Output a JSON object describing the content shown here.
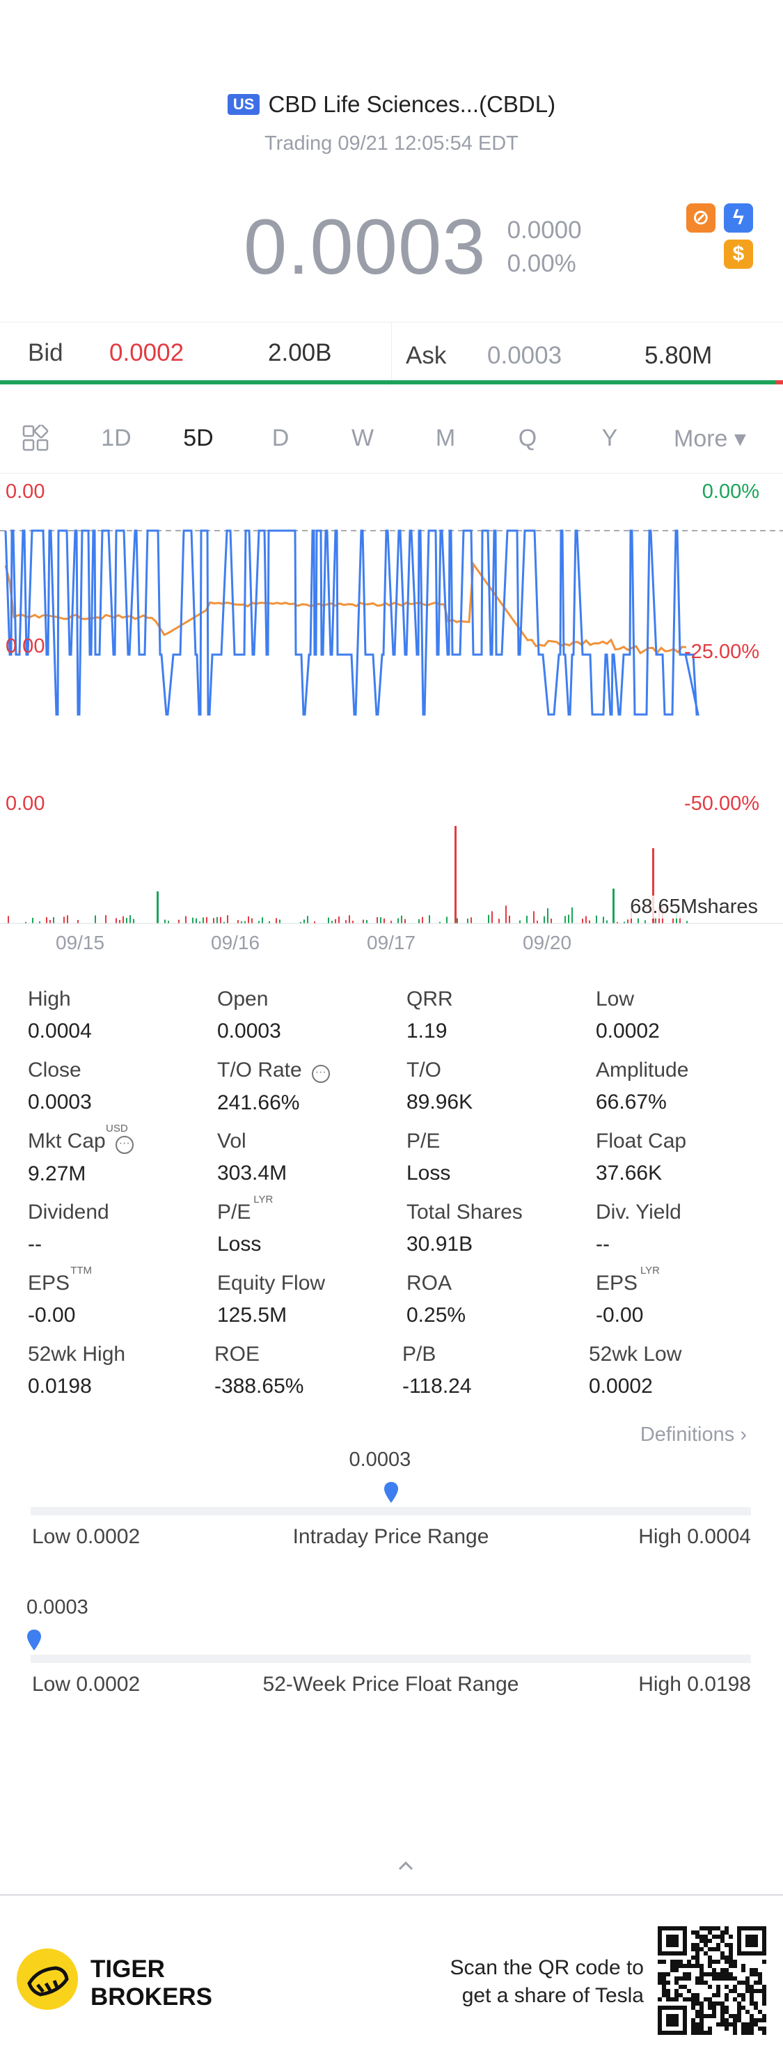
{
  "header": {
    "market_badge": "US",
    "title": "CBD Life Sciences...(CBDL)",
    "status": "Trading 09/21 12:05:54 EDT"
  },
  "price": {
    "last": "0.0003",
    "change": "0.0000",
    "change_pct": "0.00%"
  },
  "quote": {
    "bid_label": "Bid",
    "bid": "0.0002",
    "bid_size": "2.00B",
    "ask_label": "Ask",
    "ask": "0.0003",
    "ask_size": "5.80M"
  },
  "tabs": [
    "1D",
    "5D",
    "D",
    "W",
    "M",
    "Q",
    "Y"
  ],
  "tab_more": "More ▾",
  "active_tab": "5D",
  "chart": {
    "left_top": "0.00",
    "left_mid": "0.00",
    "left_bottom": "0.00",
    "right_top": "0.00%",
    "right_mid": "-25.00%",
    "right_bottom": "-50.00%",
    "volume_label": "68.65Mshares",
    "dates": [
      "09/15",
      "09/16",
      "09/17",
      "09/20"
    ]
  },
  "stats": [
    {
      "label": "High",
      "value": "0.0004"
    },
    {
      "label": "Open",
      "value": "0.0003"
    },
    {
      "label": "QRR",
      "value": "1.19"
    },
    {
      "label": "Low",
      "value": "0.0002"
    },
    {
      "label": "Close",
      "value": "0.0003"
    },
    {
      "label": "T/O Rate",
      "value": "241.66%",
      "dots": true
    },
    {
      "label": "T/O",
      "value": "89.96K"
    },
    {
      "label": "Amplitude",
      "value": "66.67%"
    },
    {
      "label": "Mkt Cap",
      "value": "9.27M",
      "sup": "USD",
      "dots": true
    },
    {
      "label": "Vol",
      "value": "303.4M"
    },
    {
      "label": "P/E",
      "value": "Loss"
    },
    {
      "label": "Float Cap",
      "value": "37.66K"
    },
    {
      "label": "Dividend",
      "value": "--"
    },
    {
      "label": "P/E",
      "value": "Loss",
      "sup": "LYR"
    },
    {
      "label": "Total Shares",
      "value": "30.91B"
    },
    {
      "label": "Div. Yield",
      "value": "--"
    },
    {
      "label": "EPS",
      "value": "-0.00",
      "sup": "TTM"
    },
    {
      "label": "Equity Flow",
      "value": "125.5M"
    },
    {
      "label": "ROA",
      "value": "0.25%"
    },
    {
      "label": "EPS",
      "value": "-0.00",
      "sup": "LYR"
    },
    {
      "label": "52wk High",
      "value": "0.0198"
    },
    {
      "label": "ROE",
      "value": "-388.65%"
    },
    {
      "label": "P/B",
      "value": "-118.24"
    },
    {
      "label": "52wk Low",
      "value": "0.0002"
    }
  ],
  "definitions": "Definitions",
  "intraday": {
    "current": "0.0003",
    "low": "Low 0.0002",
    "title": "Intraday Price Range",
    "high": "High 0.0004",
    "position": 0.5
  },
  "week52": {
    "current": "0.0003",
    "low": "Low 0.0002",
    "title": "52-Week Price Float Range",
    "high": "High 0.0198",
    "position": 0.005
  },
  "footer": {
    "brand_line1": "TIGER",
    "brand_line2": "BROKERS",
    "promo_line1": "Scan the QR code to",
    "promo_line2": "get a share of Tesla"
  },
  "colors": {
    "up": "#1ba35a",
    "down": "#e23b42",
    "accent": "#3f6fe5",
    "price_line": "#3f7ef0",
    "avg_line": "#f0923a"
  }
}
